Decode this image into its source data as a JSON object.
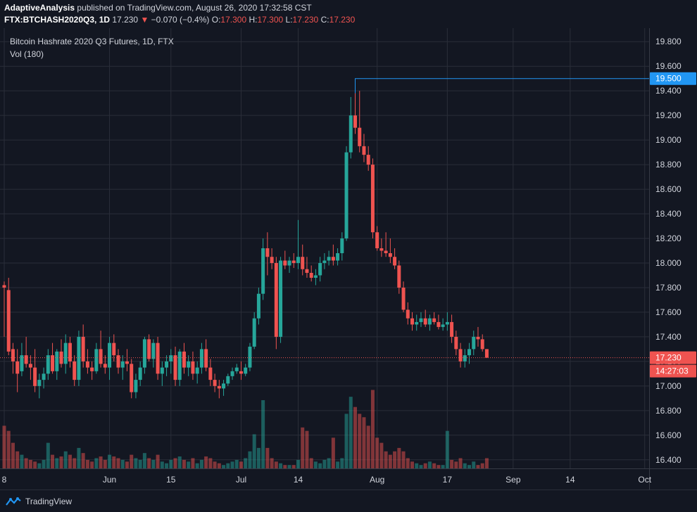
{
  "header": {
    "author": "AdaptiveAnalysis",
    "published_text": "published on TradingView.com, August 26, 2020 17:32:58 CST",
    "symbol": "FTX:BTCHASH2020Q3, 1D",
    "last": "17.230",
    "change": "−0.070 (−0.4%)",
    "o_label": "O:",
    "o_val": "17.300",
    "h_label": "H:",
    "h_val": "17.300",
    "l_label": "L:",
    "l_val": "17.230",
    "c_label": "C:",
    "c_val": "17.230"
  },
  "legend": {
    "title": "Bitcoin Hashrate 2020 Q3 Futures, 1D, FTX",
    "volume": "Vol (180)"
  },
  "price_labels": {
    "high_marker": "19.500",
    "last_price": "17.230",
    "countdown": "14:27:03"
  },
  "footer": {
    "brand": "TradingView"
  },
  "colors": {
    "up": "#26a69a",
    "down": "#ef5350",
    "high_line": "#2196f3",
    "background": "#131722",
    "grid": "#2a2e39"
  },
  "chart_data": {
    "type": "candlestick",
    "y_ticks": [
      "19.800",
      "19.600",
      "19.400",
      "19.200",
      "19.000",
      "18.800",
      "18.600",
      "18.400",
      "18.200",
      "18.000",
      "17.800",
      "17.600",
      "17.400",
      "17.200",
      "17.000",
      "16.800",
      "16.600",
      "16.400"
    ],
    "ylim": [
      16.33,
      19.91
    ],
    "x_ticks": [
      {
        "label": "8",
        "date": "2020-05-08"
      },
      {
        "label": "Jun",
        "date": "2020-06-01"
      },
      {
        "label": "15",
        "date": "2020-06-15"
      },
      {
        "label": "Jul",
        "date": "2020-07-01"
      },
      {
        "label": "14",
        "date": "2020-07-14"
      },
      {
        "label": "Aug",
        "date": "2020-08-01"
      },
      {
        "label": "17",
        "date": "2020-08-17"
      },
      {
        "label": "Sep",
        "date": "2020-09-01"
      },
      {
        "label": "14",
        "date": "2020-09-14"
      },
      {
        "label": "Oct",
        "date": "2020-10-01"
      }
    ],
    "first_date": "2020-05-08",
    "last_date": "2020-10-02",
    "candles": [
      {
        "d": "2020-05-08",
        "o": 17.82,
        "h": 17.85,
        "l": 17.4,
        "c": 17.8,
        "v": 0.25
      },
      {
        "d": "2020-05-09",
        "o": 17.78,
        "h": 17.88,
        "l": 17.25,
        "c": 17.28,
        "v": 0.22
      },
      {
        "d": "2020-05-10",
        "o": 17.3,
        "h": 17.35,
        "l": 17.1,
        "c": 17.2,
        "v": 0.15
      },
      {
        "d": "2020-05-11",
        "o": 17.2,
        "h": 17.3,
        "l": 16.95,
        "c": 17.1,
        "v": 0.1
      },
      {
        "d": "2020-05-12",
        "o": 17.12,
        "h": 17.35,
        "l": 17.08,
        "c": 17.25,
        "v": 0.08
      },
      {
        "d": "2020-05-13",
        "o": 17.25,
        "h": 17.4,
        "l": 17.15,
        "c": 17.18,
        "v": 0.06
      },
      {
        "d": "2020-05-14",
        "o": 17.18,
        "h": 17.25,
        "l": 17.05,
        "c": 17.15,
        "v": 0.05
      },
      {
        "d": "2020-05-15",
        "o": 17.15,
        "h": 17.3,
        "l": 16.95,
        "c": 17.0,
        "v": 0.04
      },
      {
        "d": "2020-05-16",
        "o": 17.0,
        "h": 17.1,
        "l": 16.9,
        "c": 17.05,
        "v": 0.03
      },
      {
        "d": "2020-05-17",
        "o": 17.05,
        "h": 17.15,
        "l": 16.98,
        "c": 17.1,
        "v": 0.05
      },
      {
        "d": "2020-05-18",
        "o": 17.1,
        "h": 17.3,
        "l": 17.05,
        "c": 17.25,
        "v": 0.15
      },
      {
        "d": "2020-05-19",
        "o": 17.25,
        "h": 17.35,
        "l": 17.1,
        "c": 17.12,
        "v": 0.08
      },
      {
        "d": "2020-05-20",
        "o": 17.12,
        "h": 17.3,
        "l": 17.05,
        "c": 17.28,
        "v": 0.06
      },
      {
        "d": "2020-05-21",
        "o": 17.28,
        "h": 17.38,
        "l": 17.15,
        "c": 17.18,
        "v": 0.07
      },
      {
        "d": "2020-05-22",
        "o": 17.18,
        "h": 17.42,
        "l": 17.1,
        "c": 17.35,
        "v": 0.1
      },
      {
        "d": "2020-05-23",
        "o": 17.35,
        "h": 17.4,
        "l": 17.15,
        "c": 17.2,
        "v": 0.08
      },
      {
        "d": "2020-05-24",
        "o": 17.2,
        "h": 17.25,
        "l": 17.0,
        "c": 17.05,
        "v": 0.06
      },
      {
        "d": "2020-05-25",
        "o": 17.05,
        "h": 17.45,
        "l": 17.0,
        "c": 17.4,
        "v": 0.12
      },
      {
        "d": "2020-05-26",
        "o": 17.4,
        "h": 17.5,
        "l": 17.15,
        "c": 17.2,
        "v": 0.09
      },
      {
        "d": "2020-05-27",
        "o": 17.2,
        "h": 17.3,
        "l": 17.1,
        "c": 17.15,
        "v": 0.05
      },
      {
        "d": "2020-05-28",
        "o": 17.15,
        "h": 17.2,
        "l": 17.05,
        "c": 17.12,
        "v": 0.04
      },
      {
        "d": "2020-05-29",
        "o": 17.12,
        "h": 17.35,
        "l": 17.1,
        "c": 17.3,
        "v": 0.06
      },
      {
        "d": "2020-05-30",
        "o": 17.3,
        "h": 17.45,
        "l": 17.15,
        "c": 17.18,
        "v": 0.07
      },
      {
        "d": "2020-05-31",
        "o": 17.18,
        "h": 17.25,
        "l": 17.1,
        "c": 17.15,
        "v": 0.05
      },
      {
        "d": "2020-06-01",
        "o": 17.15,
        "h": 17.4,
        "l": 17.05,
        "c": 17.35,
        "v": 0.08
      },
      {
        "d": "2020-06-02",
        "o": 17.35,
        "h": 17.42,
        "l": 17.2,
        "c": 17.25,
        "v": 0.07
      },
      {
        "d": "2020-06-03",
        "o": 17.25,
        "h": 17.3,
        "l": 17.1,
        "c": 17.15,
        "v": 0.06
      },
      {
        "d": "2020-06-04",
        "o": 17.15,
        "h": 17.25,
        "l": 17.05,
        "c": 17.2,
        "v": 0.05
      },
      {
        "d": "2020-06-05",
        "o": 17.2,
        "h": 17.3,
        "l": 17.12,
        "c": 17.18,
        "v": 0.04
      },
      {
        "d": "2020-06-06",
        "o": 17.18,
        "h": 17.22,
        "l": 16.9,
        "c": 16.95,
        "v": 0.08
      },
      {
        "d": "2020-06-07",
        "o": 16.95,
        "h": 17.1,
        "l": 16.9,
        "c": 17.05,
        "v": 0.06
      },
      {
        "d": "2020-06-08",
        "o": 17.05,
        "h": 17.2,
        "l": 17.0,
        "c": 17.15,
        "v": 0.05
      },
      {
        "d": "2020-06-09",
        "o": 17.15,
        "h": 17.4,
        "l": 17.1,
        "c": 17.38,
        "v": 0.09
      },
      {
        "d": "2020-06-10",
        "o": 17.38,
        "h": 17.42,
        "l": 17.2,
        "c": 17.22,
        "v": 0.06
      },
      {
        "d": "2020-06-11",
        "o": 17.22,
        "h": 17.38,
        "l": 17.15,
        "c": 17.35,
        "v": 0.05
      },
      {
        "d": "2020-06-12",
        "o": 17.35,
        "h": 17.4,
        "l": 17.05,
        "c": 17.1,
        "v": 0.08
      },
      {
        "d": "2020-06-13",
        "o": 17.1,
        "h": 17.2,
        "l": 17.0,
        "c": 17.15,
        "v": 0.04
      },
      {
        "d": "2020-06-14",
        "o": 17.15,
        "h": 17.25,
        "l": 17.08,
        "c": 17.2,
        "v": 0.03
      },
      {
        "d": "2020-06-15",
        "o": 17.2,
        "h": 17.3,
        "l": 17.1,
        "c": 17.25,
        "v": 0.05
      },
      {
        "d": "2020-06-16",
        "o": 17.25,
        "h": 17.32,
        "l": 17.0,
        "c": 17.05,
        "v": 0.06
      },
      {
        "d": "2020-06-17",
        "o": 17.05,
        "h": 17.3,
        "l": 17.0,
        "c": 17.28,
        "v": 0.07
      },
      {
        "d": "2020-06-18",
        "o": 17.28,
        "h": 17.35,
        "l": 17.1,
        "c": 17.15,
        "v": 0.05
      },
      {
        "d": "2020-06-19",
        "o": 17.15,
        "h": 17.25,
        "l": 17.08,
        "c": 17.2,
        "v": 0.04
      },
      {
        "d": "2020-06-20",
        "o": 17.2,
        "h": 17.28,
        "l": 17.05,
        "c": 17.1,
        "v": 0.06
      },
      {
        "d": "2020-06-21",
        "o": 17.1,
        "h": 17.2,
        "l": 17.02,
        "c": 17.15,
        "v": 0.03
      },
      {
        "d": "2020-06-22",
        "o": 17.15,
        "h": 17.35,
        "l": 17.1,
        "c": 17.3,
        "v": 0.05
      },
      {
        "d": "2020-06-23",
        "o": 17.3,
        "h": 17.38,
        "l": 17.12,
        "c": 17.15,
        "v": 0.07
      },
      {
        "d": "2020-06-24",
        "o": 17.15,
        "h": 17.22,
        "l": 17.0,
        "c": 17.05,
        "v": 0.06
      },
      {
        "d": "2020-06-25",
        "o": 17.05,
        "h": 17.1,
        "l": 16.95,
        "c": 17.0,
        "v": 0.04
      },
      {
        "d": "2020-06-26",
        "o": 17.0,
        "h": 17.05,
        "l": 16.9,
        "c": 16.98,
        "v": 0.03
      },
      {
        "d": "2020-06-27",
        "o": 16.98,
        "h": 17.05,
        "l": 16.92,
        "c": 17.02,
        "v": 0.02
      },
      {
        "d": "2020-06-28",
        "o": 17.02,
        "h": 17.1,
        "l": 17.0,
        "c": 17.08,
        "v": 0.03
      },
      {
        "d": "2020-06-29",
        "o": 17.08,
        "h": 17.15,
        "l": 17.05,
        "c": 17.12,
        "v": 0.04
      },
      {
        "d": "2020-06-30",
        "o": 17.12,
        "h": 17.18,
        "l": 17.1,
        "c": 17.15,
        "v": 0.05
      },
      {
        "d": "2020-07-01",
        "o": 17.12,
        "h": 17.2,
        "l": 17.05,
        "c": 17.1,
        "v": 0.04
      },
      {
        "d": "2020-07-02",
        "o": 17.1,
        "h": 17.18,
        "l": 17.08,
        "c": 17.15,
        "v": 0.06
      },
      {
        "d": "2020-07-03",
        "o": 17.15,
        "h": 17.35,
        "l": 17.12,
        "c": 17.32,
        "v": 0.1
      },
      {
        "d": "2020-07-04",
        "o": 17.32,
        "h": 17.6,
        "l": 17.3,
        "c": 17.55,
        "v": 0.2
      },
      {
        "d": "2020-07-05",
        "o": 17.55,
        "h": 17.8,
        "l": 17.5,
        "c": 17.75,
        "v": 0.12
      },
      {
        "d": "2020-07-06",
        "o": 17.75,
        "h": 18.2,
        "l": 17.7,
        "c": 18.12,
        "v": 0.4
      },
      {
        "d": "2020-07-07",
        "o": 18.12,
        "h": 18.25,
        "l": 17.9,
        "c": 18.05,
        "v": 0.12
      },
      {
        "d": "2020-07-08",
        "o": 18.05,
        "h": 18.12,
        "l": 17.95,
        "c": 18.0,
        "v": 0.06
      },
      {
        "d": "2020-07-09",
        "o": 18.0,
        "h": 18.05,
        "l": 17.3,
        "c": 17.4,
        "v": 0.04
      },
      {
        "d": "2020-07-10",
        "o": 17.4,
        "h": 18.05,
        "l": 17.35,
        "c": 18.02,
        "v": 0.03
      },
      {
        "d": "2020-07-11",
        "o": 18.02,
        "h": 18.1,
        "l": 17.95,
        "c": 17.98,
        "v": 0.02
      },
      {
        "d": "2020-07-12",
        "o": 17.98,
        "h": 18.05,
        "l": 17.92,
        "c": 18.02,
        "v": 0.02
      },
      {
        "d": "2020-07-13",
        "o": 18.02,
        "h": 18.08,
        "l": 17.96,
        "c": 18.0,
        "v": 0.02
      },
      {
        "d": "2020-07-14",
        "o": 18.0,
        "h": 18.35,
        "l": 17.95,
        "c": 18.05,
        "v": 0.05
      },
      {
        "d": "2020-07-15",
        "o": 18.05,
        "h": 18.15,
        "l": 17.9,
        "c": 17.95,
        "v": 0.24
      },
      {
        "d": "2020-07-16",
        "o": 17.95,
        "h": 18.05,
        "l": 17.88,
        "c": 17.92,
        "v": 0.22
      },
      {
        "d": "2020-07-17",
        "o": 17.92,
        "h": 17.98,
        "l": 17.85,
        "c": 17.88,
        "v": 0.06
      },
      {
        "d": "2020-07-18",
        "o": 17.88,
        "h": 17.95,
        "l": 17.82,
        "c": 17.9,
        "v": 0.04
      },
      {
        "d": "2020-07-19",
        "o": 17.9,
        "h": 18.05,
        "l": 17.85,
        "c": 18.0,
        "v": 0.03
      },
      {
        "d": "2020-07-20",
        "o": 18.0,
        "h": 18.08,
        "l": 17.95,
        "c": 18.02,
        "v": 0.05
      },
      {
        "d": "2020-07-21",
        "o": 18.02,
        "h": 18.1,
        "l": 17.98,
        "c": 18.05,
        "v": 0.06
      },
      {
        "d": "2020-07-22",
        "o": 18.05,
        "h": 18.15,
        "l": 17.98,
        "c": 18.02,
        "v": 0.18
      },
      {
        "d": "2020-07-23",
        "o": 18.02,
        "h": 18.12,
        "l": 17.98,
        "c": 18.08,
        "v": 0.04
      },
      {
        "d": "2020-07-24",
        "o": 18.08,
        "h": 18.25,
        "l": 18.02,
        "c": 18.2,
        "v": 0.06
      },
      {
        "d": "2020-07-25",
        "o": 18.2,
        "h": 18.95,
        "l": 18.18,
        "c": 18.9,
        "v": 0.32
      },
      {
        "d": "2020-07-26",
        "o": 18.9,
        "h": 19.35,
        "l": 18.85,
        "c": 19.2,
        "v": 0.42
      },
      {
        "d": "2020-07-27",
        "o": 19.2,
        "h": 19.5,
        "l": 19.05,
        "c": 19.1,
        "v": 0.36
      },
      {
        "d": "2020-07-28",
        "o": 19.1,
        "h": 19.4,
        "l": 18.9,
        "c": 18.95,
        "v": 0.32
      },
      {
        "d": "2020-07-29",
        "o": 18.95,
        "h": 19.05,
        "l": 18.82,
        "c": 18.88,
        "v": 0.3
      },
      {
        "d": "2020-07-30",
        "o": 18.88,
        "h": 18.95,
        "l": 18.75,
        "c": 18.8,
        "v": 0.25
      },
      {
        "d": "2020-07-31",
        "o": 18.8,
        "h": 18.85,
        "l": 18.2,
        "c": 18.25,
        "v": 0.46
      },
      {
        "d": "2020-08-01",
        "o": 18.25,
        "h": 18.3,
        "l": 18.1,
        "c": 18.12,
        "v": 0.18
      },
      {
        "d": "2020-08-02",
        "o": 18.12,
        "h": 18.2,
        "l": 18.05,
        "c": 18.1,
        "v": 0.15
      },
      {
        "d": "2020-08-03",
        "o": 18.1,
        "h": 18.25,
        "l": 18.05,
        "c": 18.08,
        "v": 0.1
      },
      {
        "d": "2020-08-04",
        "o": 18.08,
        "h": 18.2,
        "l": 18.0,
        "c": 18.05,
        "v": 0.08
      },
      {
        "d": "2020-08-05",
        "o": 18.05,
        "h": 18.12,
        "l": 17.95,
        "c": 17.98,
        "v": 0.1
      },
      {
        "d": "2020-08-06",
        "o": 17.98,
        "h": 18.02,
        "l": 17.75,
        "c": 17.8,
        "v": 0.12
      },
      {
        "d": "2020-08-07",
        "o": 17.8,
        "h": 17.85,
        "l": 17.6,
        "c": 17.62,
        "v": 0.1
      },
      {
        "d": "2020-08-08",
        "o": 17.62,
        "h": 17.68,
        "l": 17.5,
        "c": 17.55,
        "v": 0.06
      },
      {
        "d": "2020-08-09",
        "o": 17.55,
        "h": 17.6,
        "l": 17.45,
        "c": 17.5,
        "v": 0.04
      },
      {
        "d": "2020-08-10",
        "o": 17.5,
        "h": 17.58,
        "l": 17.45,
        "c": 17.52,
        "v": 0.03
      },
      {
        "d": "2020-08-11",
        "o": 17.52,
        "h": 17.6,
        "l": 17.48,
        "c": 17.55,
        "v": 0.02
      },
      {
        "d": "2020-08-12",
        "o": 17.55,
        "h": 17.62,
        "l": 17.48,
        "c": 17.5,
        "v": 0.03
      },
      {
        "d": "2020-08-13",
        "o": 17.5,
        "h": 17.58,
        "l": 17.45,
        "c": 17.55,
        "v": 0.04
      },
      {
        "d": "2020-08-14",
        "o": 17.55,
        "h": 17.6,
        "l": 17.5,
        "c": 17.52,
        "v": 0.03
      },
      {
        "d": "2020-08-15",
        "o": 17.52,
        "h": 17.58,
        "l": 17.46,
        "c": 17.48,
        "v": 0.02
      },
      {
        "d": "2020-08-16",
        "o": 17.48,
        "h": 17.55,
        "l": 17.45,
        "c": 17.5,
        "v": 0.02
      },
      {
        "d": "2020-08-17",
        "o": 17.5,
        "h": 17.6,
        "l": 17.45,
        "c": 17.52,
        "v": 0.22
      },
      {
        "d": "2020-08-18",
        "o": 17.52,
        "h": 17.58,
        "l": 17.35,
        "c": 17.4,
        "v": 0.05
      },
      {
        "d": "2020-08-19",
        "o": 17.4,
        "h": 17.45,
        "l": 17.25,
        "c": 17.3,
        "v": 0.04
      },
      {
        "d": "2020-08-20",
        "o": 17.3,
        "h": 17.35,
        "l": 17.15,
        "c": 17.2,
        "v": 0.06
      },
      {
        "d": "2020-08-21",
        "o": 17.2,
        "h": 17.3,
        "l": 17.15,
        "c": 17.25,
        "v": 0.03
      },
      {
        "d": "2020-08-22",
        "o": 17.25,
        "h": 17.35,
        "l": 17.18,
        "c": 17.3,
        "v": 0.02
      },
      {
        "d": "2020-08-23",
        "o": 17.3,
        "h": 17.45,
        "l": 17.25,
        "c": 17.4,
        "v": 0.04
      },
      {
        "d": "2020-08-24",
        "o": 17.4,
        "h": 17.48,
        "l": 17.32,
        "c": 17.38,
        "v": 0.02
      },
      {
        "d": "2020-08-25",
        "o": 17.38,
        "h": 17.42,
        "l": 17.28,
        "c": 17.3,
        "v": 0.03
      },
      {
        "d": "2020-08-26",
        "o": 17.3,
        "h": 17.3,
        "l": 17.23,
        "c": 17.23,
        "v": 0.06
      }
    ],
    "volume_max_label_fraction": 1.0,
    "high_value": 19.5,
    "high_date": "2020-07-27",
    "last_value": 17.23
  }
}
